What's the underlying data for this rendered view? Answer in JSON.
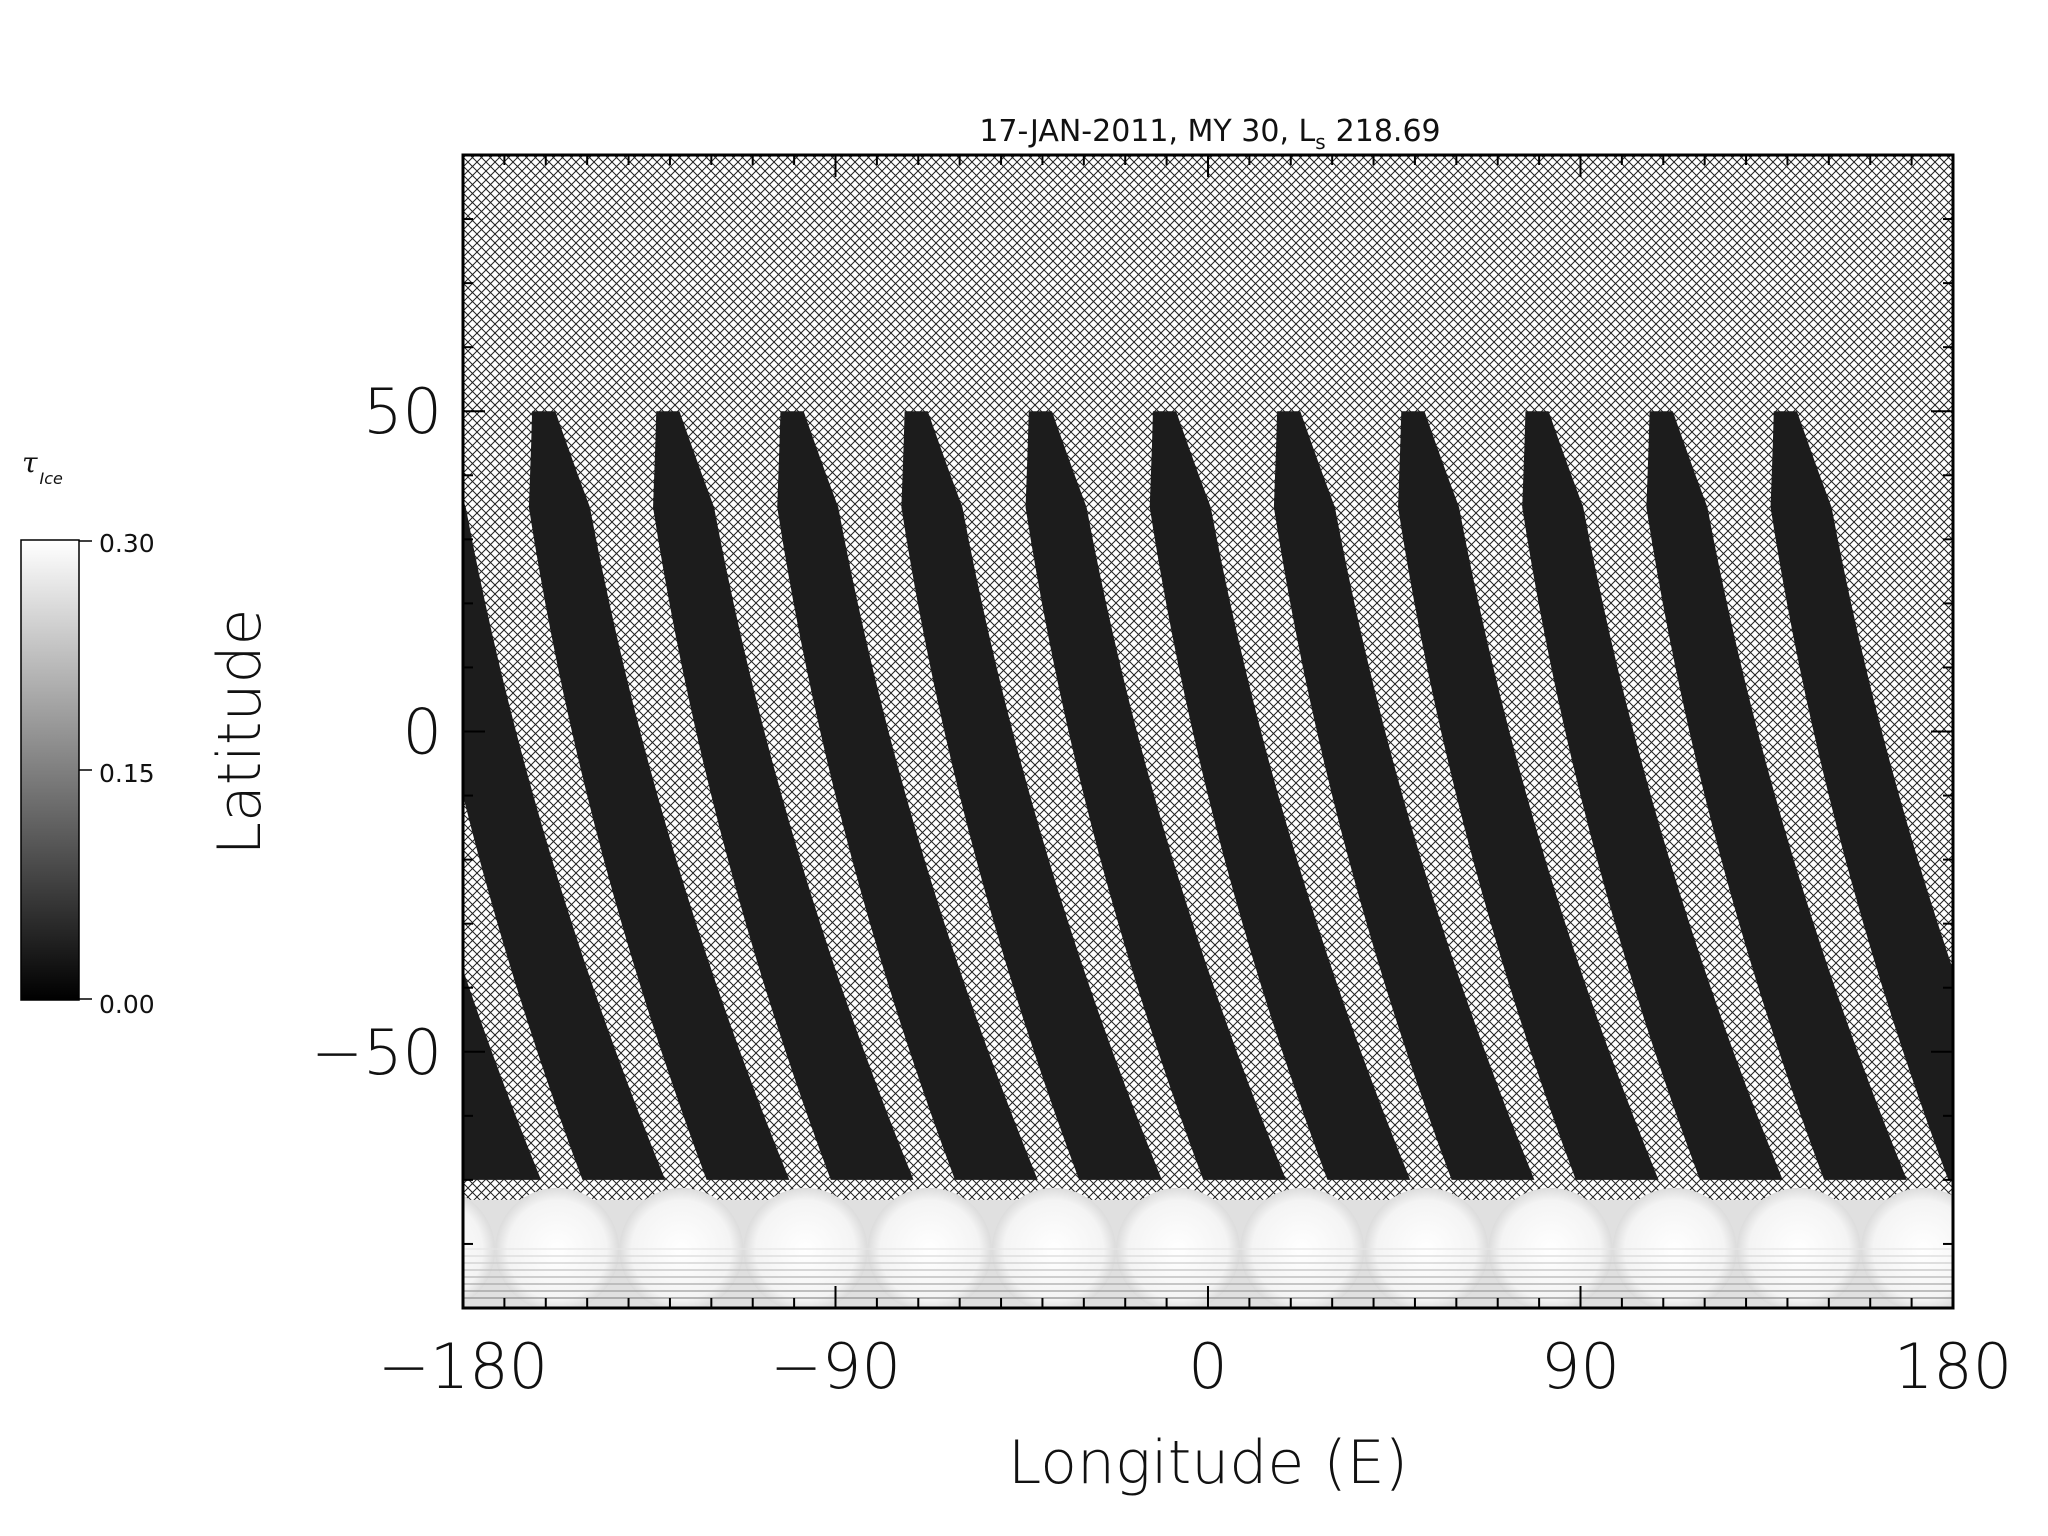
{
  "chart_data": {
    "type": "heatmap",
    "title": "17-JAN-2011, MY 30,  L",
    "title_subscript": "s",
    "title_value": "218.69",
    "xlabel": "Longitude (E)",
    "ylabel": "Latitude",
    "xlim": [
      -180,
      180
    ],
    "ylim": [
      -90,
      90
    ],
    "x_ticks": [
      {
        "value": -180,
        "label": "−180"
      },
      {
        "value": -90,
        "label": "−90"
      },
      {
        "value": 0,
        "label": "0"
      },
      {
        "value": 90,
        "label": "90"
      },
      {
        "value": 180,
        "label": "180"
      }
    ],
    "y_ticks": [
      {
        "value": 50,
        "label": "50"
      },
      {
        "value": 0,
        "label": "0"
      },
      {
        "value": -50,
        "label": "−50"
      }
    ],
    "colorbar": {
      "symbol": "τ",
      "subscript": "Ice",
      "min": 0.0,
      "max": 0.3,
      "tick_labels": [
        "0.30",
        "0.15",
        "0.00"
      ],
      "colormap": "grayscale",
      "no_data_pattern": "crosshatch"
    },
    "orbit_swaths": {
      "count": 13,
      "equator_longitudes": [
        -150,
        -120,
        -90,
        -60,
        -30,
        0,
        30,
        60,
        90,
        120,
        150,
        180,
        -180
      ],
      "lat_top": 50,
      "lat_gap_bottom": -70,
      "polar_cap_lat": -70,
      "background_optical_depth": 0.02,
      "polar_cap_optical_depth": 0.3
    }
  }
}
